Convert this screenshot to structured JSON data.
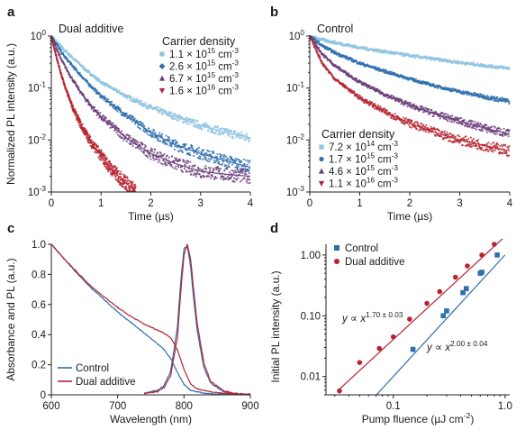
{
  "figure": {
    "panels": [
      "a",
      "b",
      "c",
      "d"
    ]
  },
  "chart_data": [
    {
      "panel": "a",
      "type": "scatter",
      "title": "Dual additive",
      "xlabel": "Time (µs)",
      "ylabel": "Normalized PL intensity (a.u.)",
      "xlim": [
        0,
        4
      ],
      "ylim": [
        0.001,
        1
      ],
      "yscale": "log",
      "xticks": [
        "0",
        "1",
        "2",
        "3",
        "4"
      ],
      "yticks": [
        "10^-3",
        "10^-2",
        "10^-1",
        "10^0"
      ],
      "legend_title": "Carrier density",
      "legend_position": "top-right",
      "series": [
        {
          "name": "1.1 × 10^15 cm^-3",
          "marker": "square",
          "color": "#8fc4e0",
          "x": [
            0,
            0.25,
            0.5,
            0.75,
            1,
            1.5,
            2,
            2.5,
            3,
            3.5,
            4
          ],
          "y": [
            1,
            0.55,
            0.33,
            0.2,
            0.13,
            0.07,
            0.042,
            0.028,
            0.019,
            0.014,
            0.011
          ]
        },
        {
          "name": "2.6 × 10^15 cm^-3",
          "marker": "diamond",
          "color": "#2e6fad",
          "x": [
            0,
            0.25,
            0.5,
            0.75,
            1,
            1.5,
            2,
            2.5,
            3,
            3.5,
            4
          ],
          "y": [
            1,
            0.42,
            0.22,
            0.12,
            0.07,
            0.03,
            0.014,
            0.008,
            0.0055,
            0.004,
            0.003
          ]
        },
        {
          "name": "6.7 × 10^15 cm^-3",
          "marker": "triangle-up",
          "color": "#6b3d7a",
          "x": [
            0,
            0.2,
            0.4,
            0.6,
            0.8,
            1,
            1.5,
            2,
            2.5,
            3,
            3.5,
            4
          ],
          "y": [
            1,
            0.35,
            0.16,
            0.08,
            0.045,
            0.028,
            0.011,
            0.0055,
            0.0035,
            0.0025,
            0.0022,
            0.002
          ]
        },
        {
          "name": "1.6 × 10^16 cm^-3",
          "marker": "triangle-down",
          "color": "#b5252f",
          "x": [
            0,
            0.1,
            0.2,
            0.3,
            0.4,
            0.5,
            0.6,
            0.8,
            1,
            1.2,
            1.4,
            1.7
          ],
          "y": [
            1,
            0.4,
            0.18,
            0.09,
            0.05,
            0.03,
            0.019,
            0.009,
            0.005,
            0.0028,
            0.0018,
            0.001
          ]
        }
      ]
    },
    {
      "panel": "b",
      "type": "scatter",
      "title": "Control",
      "xlabel": "Time (µs)",
      "ylabel": "",
      "xlim": [
        0,
        4
      ],
      "ylim": [
        0.001,
        1
      ],
      "yscale": "log",
      "xticks": [
        "0",
        "1",
        "2",
        "3",
        "4"
      ],
      "yticks": [
        "10^-3",
        "10^-2",
        "10^-1",
        "10^0"
      ],
      "legend_title": "Carrier density",
      "legend_position": "bottom-left",
      "series": [
        {
          "name": "7.2 × 10^14 cm^-3",
          "marker": "square",
          "color": "#8fc4e0",
          "x": [
            0,
            0.25,
            0.5,
            1,
            1.5,
            2,
            2.5,
            3,
            3.5,
            4
          ],
          "y": [
            1,
            0.85,
            0.75,
            0.6,
            0.5,
            0.42,
            0.36,
            0.31,
            0.27,
            0.24
          ]
        },
        {
          "name": "1.7 × 10^15 cm^-3",
          "marker": "circle",
          "color": "#2e6fad",
          "x": [
            0,
            0.25,
            0.5,
            1,
            1.5,
            2,
            2.5,
            3,
            3.5,
            4
          ],
          "y": [
            1,
            0.65,
            0.48,
            0.3,
            0.21,
            0.15,
            0.11,
            0.085,
            0.068,
            0.055
          ]
        },
        {
          "name": "4.6 × 10^15 cm^-3",
          "marker": "triangle-up",
          "color": "#6b3d7a",
          "x": [
            0,
            0.25,
            0.5,
            1,
            1.5,
            2,
            2.5,
            3,
            3.5,
            4
          ],
          "y": [
            1,
            0.45,
            0.27,
            0.13,
            0.075,
            0.047,
            0.032,
            0.023,
            0.017,
            0.013
          ]
        },
        {
          "name": "1.1 × 10^16 cm^-3",
          "marker": "triangle-down",
          "color": "#b5252f",
          "x": [
            0,
            0.25,
            0.5,
            1,
            1.5,
            2,
            2.5,
            3,
            3.5,
            4
          ],
          "y": [
            1,
            0.3,
            0.15,
            0.065,
            0.035,
            0.021,
            0.014,
            0.01,
            0.0078,
            0.0062
          ]
        }
      ]
    },
    {
      "panel": "c",
      "type": "line",
      "title": "",
      "xlabel": "Wavelength (nm)",
      "ylabel": "Absorbance and PL (a.u.)",
      "xlim": [
        600,
        900
      ],
      "ylim": [
        0,
        1.0
      ],
      "xticks": [
        "600",
        "700",
        "800",
        "900"
      ],
      "yticks": [
        "0",
        "0.2",
        "0.4",
        "0.6",
        "0.8",
        "1.0"
      ],
      "legend_position": "bottom-left",
      "series": [
        {
          "name": "Control",
          "color": "#2e6fad",
          "x": [
            600,
            620,
            640,
            660,
            680,
            700,
            720,
            740,
            760,
            770,
            780,
            790,
            800,
            810,
            820,
            830,
            840,
            850,
            860,
            880,
            900
          ],
          "absorbance": [
            1.0,
            0.9,
            0.8,
            0.71,
            0.63,
            0.55,
            0.48,
            0.41,
            0.34,
            0.3,
            0.24,
            0.15,
            0.07,
            0.03,
            0.02,
            0.01,
            0.008,
            0.006,
            0.005,
            0.003,
            0.002
          ],
          "pl_x": [
            740,
            760,
            770,
            780,
            790,
            795,
            800,
            805,
            810,
            815,
            820,
            830,
            840,
            860,
            880,
            900
          ],
          "pl": [
            0.01,
            0.03,
            0.06,
            0.16,
            0.45,
            0.75,
            0.97,
            0.99,
            0.85,
            0.62,
            0.42,
            0.18,
            0.08,
            0.02,
            0.005,
            0.0
          ]
        },
        {
          "name": "Dual additive",
          "color": "#b5252f",
          "x": [
            600,
            620,
            640,
            660,
            680,
            700,
            720,
            740,
            760,
            770,
            780,
            790,
            800,
            810,
            820,
            830,
            840,
            850,
            860,
            880,
            900
          ],
          "absorbance": [
            1.0,
            0.9,
            0.81,
            0.72,
            0.65,
            0.58,
            0.52,
            0.47,
            0.43,
            0.41,
            0.38,
            0.3,
            0.17,
            0.07,
            0.04,
            0.03,
            0.02,
            0.015,
            0.01,
            0.006,
            0.004
          ],
          "pl_x": [
            740,
            760,
            770,
            780,
            790,
            795,
            800,
            805,
            810,
            815,
            820,
            830,
            840,
            860,
            880,
            900
          ],
          "pl": [
            0.01,
            0.02,
            0.05,
            0.13,
            0.38,
            0.68,
            0.93,
            1.0,
            0.9,
            0.68,
            0.47,
            0.21,
            0.09,
            0.025,
            0.008,
            0.0
          ]
        }
      ]
    },
    {
      "panel": "d",
      "type": "scatter",
      "title": "",
      "xlabel": "Pump fluence (µJ cm^-2)",
      "ylabel": "Initial PL intensity (a.u.)",
      "xscale": "log",
      "yscale": "log",
      "xlim": [
        0.025,
        1.1
      ],
      "ylim": [
        0.005,
        1.5
      ],
      "xticks": [
        "0.1",
        "1.0"
      ],
      "yticks": [
        "0.01",
        "0.10",
        "1.00"
      ],
      "legend_position": "top-left",
      "annotations": [
        {
          "text": "y ∝ x^(1.70 ± 0.03)",
          "series": "Dual additive"
        },
        {
          "text": "y ∝ x^(2.00 ± 0.04)",
          "series": "Control"
        }
      ],
      "series": [
        {
          "name": "Control",
          "marker": "square",
          "color": "#2e6fad",
          "x": [
            0.15,
            0.28,
            0.3,
            0.42,
            0.45,
            0.6,
            0.62,
            0.85
          ],
          "y": [
            0.028,
            0.1,
            0.12,
            0.24,
            0.28,
            0.5,
            0.52,
            1.0
          ],
          "fit_x": [
            0.064,
            1.0
          ],
          "fit_y": [
            0.0041,
            1.0
          ]
        },
        {
          "name": "Dual additive",
          "marker": "circle",
          "color": "#b5252f",
          "x": [
            0.033,
            0.05,
            0.075,
            0.1,
            0.14,
            0.2,
            0.26,
            0.36,
            0.46,
            0.62,
            0.8
          ],
          "y": [
            0.0058,
            0.017,
            0.029,
            0.045,
            0.088,
            0.16,
            0.25,
            0.43,
            0.66,
            1.0,
            1.5
          ],
          "fit_x": [
            0.033,
            1.05
          ],
          "fit_y": [
            0.0062,
            2.2
          ]
        }
      ]
    }
  ]
}
